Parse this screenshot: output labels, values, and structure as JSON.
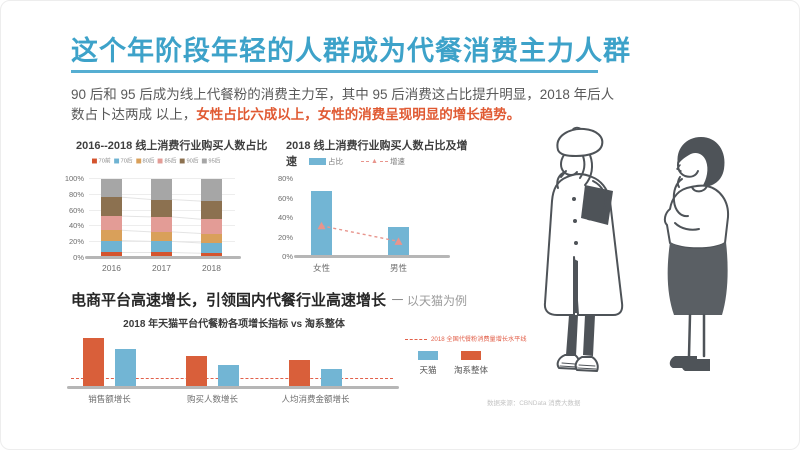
{
  "header": {
    "title": "这个年阶段年轻的人群成为代餐消费主力人群",
    "intro_normal": "90 后和 95 后成为线上代餐粉的消费主力军，其中 95 后消费这占比提升明显，2018 年后人数占卜达两成 以上，",
    "intro_highlight": "女性占比六成以上，女性的消费呈现明显的增长趋势。"
  },
  "section2": {
    "title": "电商平台高速增长，引领国内代餐行业高速增长",
    "dash": "－",
    "suffix": "以天猫为例"
  },
  "footer": {
    "source": "数据来源：CBNData 消费大数据"
  },
  "colors": {
    "title_blue": "#3da2c9",
    "highlight_orange": "#e05a33",
    "bar_blue": "#72b5d4",
    "bar_orange": "#d95f3a",
    "line_pink": "#e8958d",
    "refline_red": "#e2604a",
    "axis_gray": "#b6b6b6"
  },
  "chart_data": [
    {
      "id": "age-share",
      "type": "bar",
      "stacked": true,
      "title": "2016--2018 线上消费行业购买人数占比",
      "categories": [
        "2016",
        "2017",
        "2018"
      ],
      "series": [
        {
          "name": "70前",
          "color": "#d4542e",
          "values": [
            7,
            7,
            6
          ]
        },
        {
          "name": "70后",
          "color": "#6fb3d2",
          "values": [
            15,
            14,
            13
          ]
        },
        {
          "name": "80后",
          "color": "#d9a05a",
          "values": [
            13,
            12,
            12
          ]
        },
        {
          "name": "85后",
          "color": "#e39c96",
          "values": [
            18,
            19,
            18
          ]
        },
        {
          "name": "90后",
          "color": "#8c7150",
          "values": [
            24,
            22,
            23
          ]
        },
        {
          "name": "95后",
          "color": "#a6a6a6",
          "values": [
            23,
            26,
            28
          ]
        }
      ],
      "ylim": [
        0,
        100
      ],
      "yticks": [
        "0%",
        "20%",
        "40%",
        "60%",
        "80%",
        "100%"
      ],
      "legend_position": "top",
      "grid": true
    },
    {
      "id": "gender-share-growth",
      "type": "bar",
      "title": "2018 线上消费行业购买人数占比及增速",
      "categories": [
        "女性",
        "男性"
      ],
      "bar_series": {
        "name": "占比",
        "color": "#72b5d4",
        "values": [
          68,
          31
        ]
      },
      "line_series": {
        "name": "增速",
        "color": "#e8958d",
        "style": "dashed",
        "marker": "triangle",
        "values": [
          32,
          16
        ]
      },
      "ylim": [
        0,
        80
      ],
      "yticks": [
        "0%",
        "20%",
        "40%",
        "60%",
        "80%"
      ],
      "legend_position": "top",
      "grid": false
    },
    {
      "id": "tmall-vs-taoxi-growth",
      "type": "bar",
      "grouped": true,
      "title": "2018 年天猫平台代餐粉各项增长指标 vs 淘系整体",
      "categories": [
        "销售额增长",
        "购买人数增长",
        "人均消费金额增长"
      ],
      "series": [
        {
          "name": "淘系整体",
          "color": "#d95f3a",
          "values": [
            100,
            64,
            56
          ]
        },
        {
          "name": "天猫",
          "color": "#72b5d4",
          "values": [
            78,
            46,
            38
          ]
        }
      ],
      "value_scale": "relative-index-no-axis",
      "reference_line": {
        "label": "2018 全国代餐粉消费量增长水平线",
        "value": 18,
        "color": "#e2604a"
      },
      "legend": [
        {
          "label": "天猫",
          "color": "#72b5d4"
        },
        {
          "label": "淘系整体",
          "color": "#d95f3a"
        }
      ],
      "legend_position": "right"
    }
  ]
}
